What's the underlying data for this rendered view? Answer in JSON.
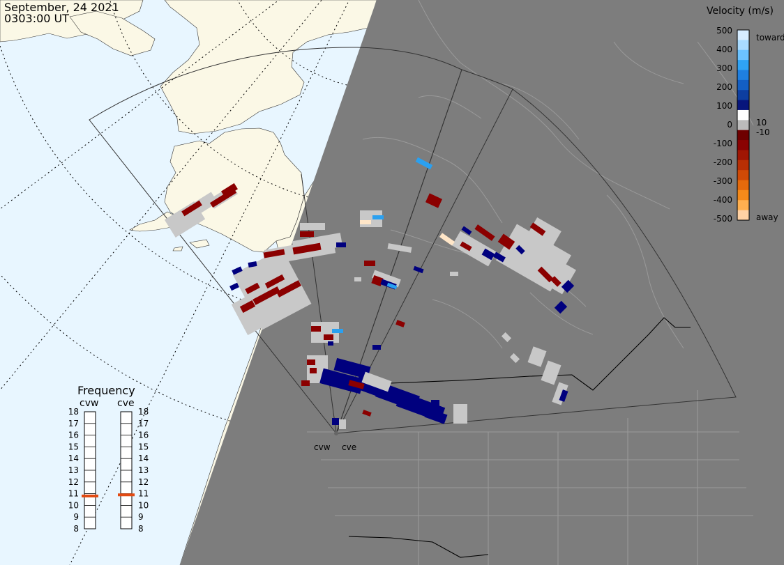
{
  "header": {
    "date": "September, 24 2021",
    "time": "0303:00 UT"
  },
  "colorbar": {
    "title": "Velocity (m/s)",
    "tick_labels": [
      "500",
      "400",
      "300",
      "200",
      "100",
      "10",
      "0",
      "-10",
      "-100",
      "-200",
      "-300",
      "-400",
      "-500"
    ],
    "toward_label": "toward",
    "away_label": "away",
    "colors": [
      "#d6ecff",
      "#a9dbff",
      "#6cc3ff",
      "#2fa3f5",
      "#1f7fe0",
      "#135fc4",
      "#0d3ea0",
      "#07157c",
      "#ffffff",
      "#bbbbbb",
      "#6e0000",
      "#8a0202",
      "#a01603",
      "#b82f04",
      "#d04a06",
      "#e56a0c",
      "#f58a1a",
      "#ffb050",
      "#ffd2a4"
    ]
  },
  "frequency_panel": {
    "title": "Frequency",
    "radars": [
      {
        "name": "cvw",
        "selected_mhz": 10.8
      },
      {
        "name": "cve",
        "selected_mhz": 10.9
      }
    ],
    "scale_labels": [
      "18",
      "17",
      "16",
      "15",
      "14",
      "13",
      "12",
      "11",
      "10",
      "9",
      "8"
    ],
    "indicator_color": "#e24a12"
  },
  "stations": {
    "cvw_label": "cvw",
    "cve_label": "cve"
  },
  "map": {
    "ocean_color": "#e8f6ff",
    "land_color": "#fbf8e6",
    "night_color": "#7d7d7d",
    "scatter_colors": {
      "ground": "#c8c8c8",
      "red": "#8b0000",
      "blue": "#00007e",
      "light_blue": "#2aa0f0",
      "pale": "#ffe6c8"
    }
  }
}
